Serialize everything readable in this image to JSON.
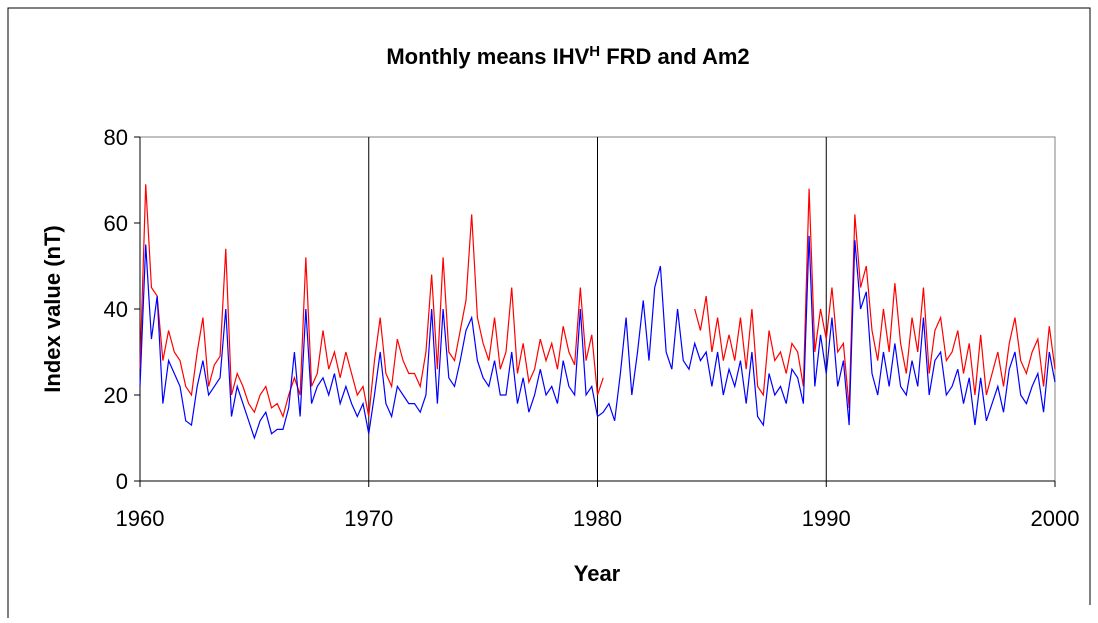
{
  "chart_data": {
    "type": "line",
    "title_parts": [
      "Monthly means IHV",
      "H",
      " FRD and Am2"
    ],
    "x_label": "Year",
    "y_label": "Index value (nT)",
    "xlim": [
      1960,
      2000
    ],
    "xticks": [
      1960,
      1970,
      1980,
      1990,
      2000
    ],
    "xgrid": true,
    "ylim": [
      0,
      80
    ],
    "yticks": [
      0,
      20,
      40,
      60,
      80
    ],
    "x": [
      1960,
      1960.25,
      1960.5,
      1960.75,
      1961,
      1961.25,
      1961.5,
      1961.75,
      1962,
      1962.25,
      1962.5,
      1962.75,
      1963,
      1963.25,
      1963.5,
      1963.75,
      1964,
      1964.25,
      1964.5,
      1964.75,
      1965,
      1965.25,
      1965.5,
      1965.75,
      1966,
      1966.25,
      1966.5,
      1966.75,
      1967,
      1967.25,
      1967.5,
      1967.75,
      1968,
      1968.25,
      1968.5,
      1968.75,
      1969,
      1969.25,
      1969.5,
      1969.75,
      1970,
      1970.25,
      1970.5,
      1970.75,
      1971,
      1971.25,
      1971.5,
      1971.75,
      1972,
      1972.25,
      1972.5,
      1972.75,
      1973,
      1973.25,
      1973.5,
      1973.75,
      1974,
      1974.25,
      1974.5,
      1974.75,
      1975,
      1975.25,
      1975.5,
      1975.75,
      1976,
      1976.25,
      1976.5,
      1976.75,
      1977,
      1977.25,
      1977.5,
      1977.75,
      1978,
      1978.25,
      1978.5,
      1978.75,
      1979,
      1979.25,
      1979.5,
      1979.75,
      1980,
      1980.25,
      1980.5,
      1980.75,
      1981,
      1981.25,
      1981.5,
      1981.75,
      1982,
      1982.25,
      1982.5,
      1982.75,
      1983,
      1983.25,
      1983.5,
      1983.75,
      1984,
      1984.25,
      1984.5,
      1984.75,
      1985,
      1985.25,
      1985.5,
      1985.75,
      1986,
      1986.25,
      1986.5,
      1986.75,
      1987,
      1987.25,
      1987.5,
      1987.75,
      1988,
      1988.25,
      1988.5,
      1988.75,
      1989,
      1989.25,
      1989.5,
      1989.75,
      1990,
      1990.25,
      1990.5,
      1990.75,
      1991,
      1991.25,
      1991.5,
      1991.75,
      1992,
      1992.25,
      1992.5,
      1992.75,
      1993,
      1993.25,
      1993.5,
      1993.75,
      1994,
      1994.25,
      1994.5,
      1994.75,
      1995,
      1995.25,
      1995.5,
      1995.75,
      1996,
      1996.25,
      1996.5,
      1996.75,
      1997,
      1997.25,
      1997.5,
      1997.75,
      1998,
      1998.25,
      1998.5,
      1998.75,
      1999,
      1999.25,
      1999.5,
      1999.75,
      2000
    ],
    "series": [
      {
        "color": "#ff0000",
        "values": [
          26,
          69,
          45,
          43,
          28,
          35,
          30,
          28,
          22,
          20,
          30,
          38,
          22,
          27,
          29,
          54,
          20,
          25,
          22,
          18,
          16,
          20,
          22,
          17,
          18,
          15,
          20,
          24,
          20,
          52,
          22,
          25,
          35,
          26,
          30,
          24,
          30,
          25,
          20,
          22,
          15,
          28,
          38,
          25,
          22,
          33,
          28,
          25,
          25,
          22,
          30,
          48,
          26,
          52,
          30,
          28,
          35,
          42,
          62,
          38,
          32,
          28,
          38,
          26,
          30,
          45,
          25,
          32,
          23,
          26,
          33,
          28,
          32,
          26,
          36,
          30,
          27,
          45,
          28,
          34,
          20,
          24,
          null,
          null,
          null,
          null,
          null,
          null,
          null,
          null,
          null,
          null,
          null,
          null,
          null,
          null,
          null,
          40,
          35,
          43,
          30,
          38,
          28,
          34,
          28,
          38,
          26,
          40,
          22,
          20,
          35,
          28,
          30,
          25,
          32,
          30,
          22,
          68,
          30,
          40,
          33,
          45,
          30,
          32,
          17,
          62,
          45,
          50,
          35,
          28,
          40,
          30,
          46,
          32,
          25,
          38,
          30,
          45,
          25,
          35,
          38,
          28,
          30,
          35,
          25,
          32,
          20,
          34,
          20,
          25,
          30,
          22,
          32,
          38,
          28,
          25,
          30,
          33,
          22,
          36,
          26
        ]
      },
      {
        "color": "#0000ff",
        "values": [
          22,
          55,
          33,
          43,
          18,
          28,
          25,
          22,
          14,
          13,
          22,
          28,
          20,
          22,
          24,
          40,
          15,
          22,
          18,
          14,
          10,
          14,
          16,
          11,
          12,
          12,
          17,
          30,
          15,
          40,
          18,
          22,
          24,
          20,
          25,
          18,
          22,
          18,
          15,
          18,
          11,
          20,
          30,
          18,
          15,
          22,
          20,
          18,
          18,
          16,
          20,
          40,
          18,
          40,
          24,
          22,
          28,
          35,
          38,
          28,
          24,
          22,
          28,
          20,
          20,
          30,
          18,
          24,
          16,
          20,
          26,
          20,
          22,
          18,
          28,
          22,
          20,
          40,
          20,
          22,
          15,
          16,
          18,
          14,
          25,
          38,
          20,
          30,
          42,
          28,
          45,
          50,
          30,
          26,
          40,
          28,
          26,
          32,
          28,
          30,
          22,
          30,
          20,
          26,
          22,
          28,
          18,
          30,
          15,
          13,
          25,
          20,
          22,
          18,
          26,
          24,
          18,
          57,
          22,
          34,
          25,
          38,
          22,
          28,
          13,
          56,
          40,
          44,
          25,
          20,
          30,
          22,
          32,
          22,
          20,
          28,
          22,
          38,
          20,
          28,
          30,
          20,
          22,
          26,
          18,
          24,
          13,
          24,
          14,
          18,
          22,
          16,
          26,
          30,
          20,
          18,
          22,
          25,
          16,
          30,
          23
        ]
      }
    ]
  }
}
